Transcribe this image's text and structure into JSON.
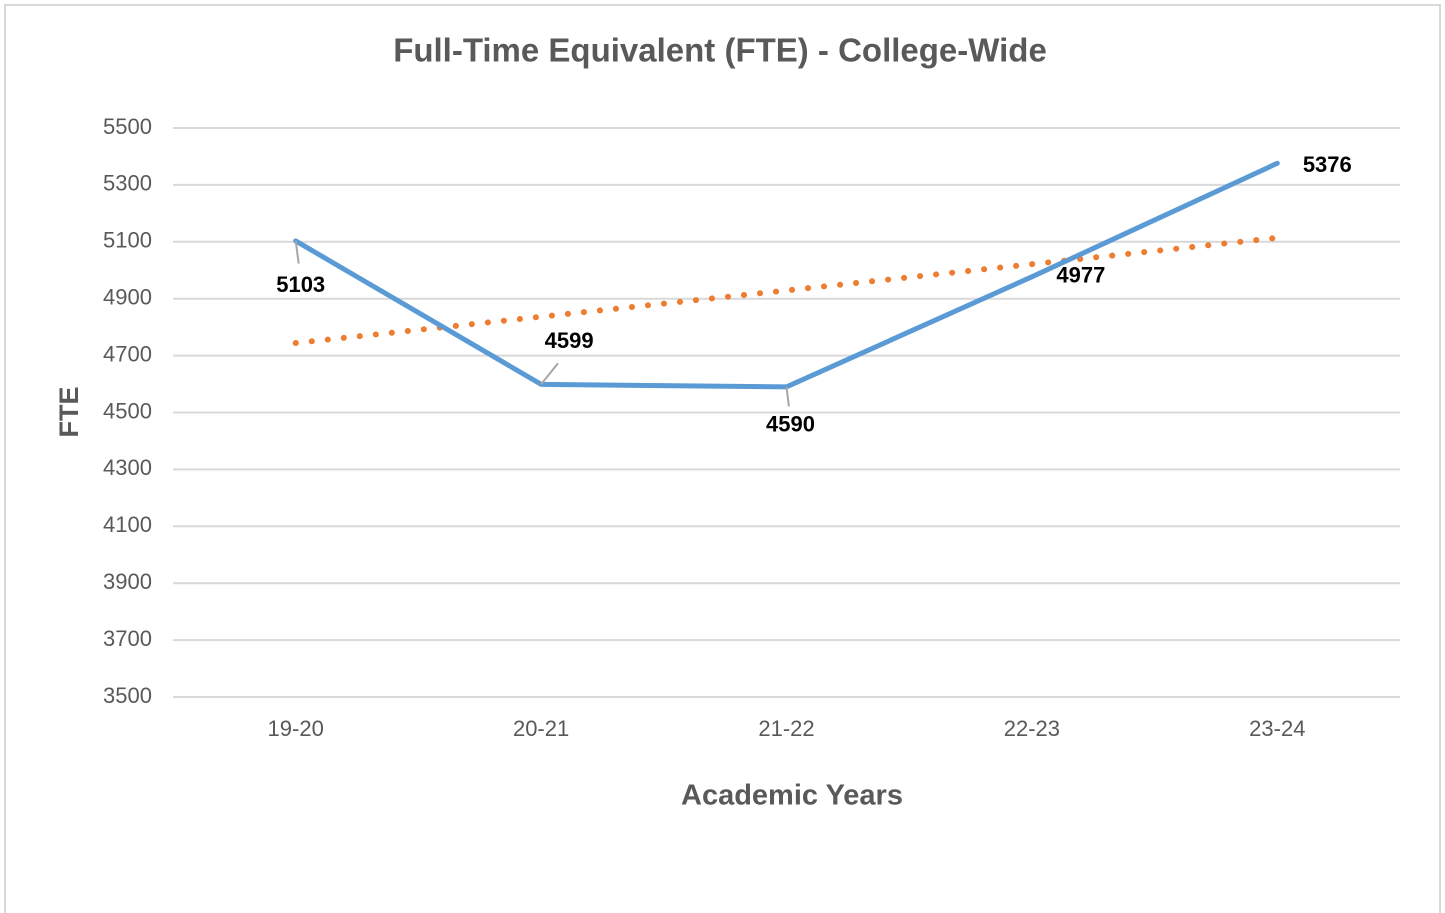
{
  "chart_data": {
    "type": "line",
    "title": "Full-Time Equivalent (FTE) - College-Wide",
    "x_label": "Academic Years",
    "y_label": "FTE",
    "categories": [
      "19-20",
      "20-21",
      "21-22",
      "22-23",
      "23-24"
    ],
    "values": [
      5103,
      4599,
      4590,
      4977,
      5376
    ],
    "color": "#5b9bd5",
    "ylim": [
      3500,
      5500
    ],
    "yticks": [
      3500,
      3700,
      3900,
      4100,
      4300,
      4500,
      4700,
      4900,
      5100,
      5300,
      5500
    ],
    "grid": true,
    "data_labels": true,
    "trendline": {
      "kind": "linear",
      "color": "#ed7d31",
      "style": "dotted"
    }
  }
}
